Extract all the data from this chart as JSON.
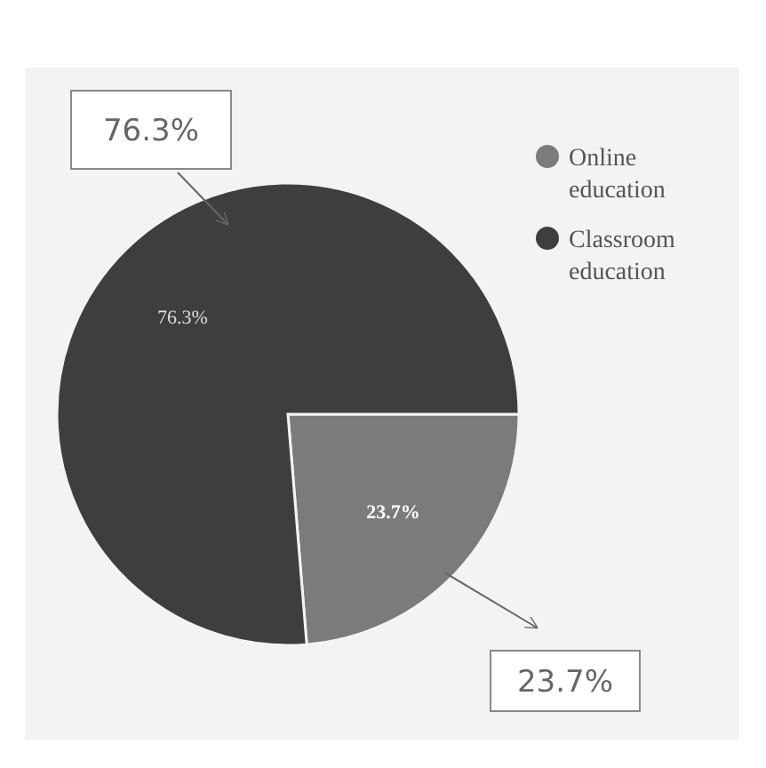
{
  "chart_data": {
    "type": "pie",
    "categories": [
      "Online education",
      "Classroom education"
    ],
    "values": [
      23.7,
      76.3
    ],
    "colors": [
      "#7b7b7b",
      "#3e3e3e"
    ],
    "value_labels": [
      "23.7%",
      "76.3%"
    ],
    "legend": "top right"
  }
}
